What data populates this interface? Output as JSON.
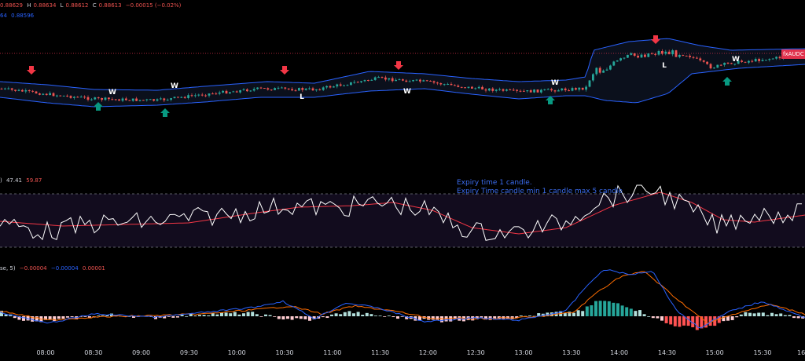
{
  "legend": {
    "main": {
      "open": "0.88629",
      "high_label": "H",
      "high": "0.88634",
      "low_label": "L",
      "low": "0.88612",
      "close_label": "C",
      "close": "0.88613",
      "change": "−0.00015 (−0.02%)"
    },
    "bollinger": {
      "value1": "64",
      "value2": "0.88596"
    },
    "rsi": {
      "suffix": ")",
      "value1": "47.41",
      "value2": "59.87"
    },
    "macd": {
      "params": "se, 5)",
      "value1": "−0.00004",
      "value2": "−0.00004",
      "value3": "0.00001"
    }
  },
  "annotations": {
    "line1": "Expiry time 1 candle.",
    "line2": "Expiry Time candle min 1 candle max 5 candle"
  },
  "price_tag": "fxAUDC",
  "signals": [
    {
      "type": "down",
      "x": 40
    },
    {
      "type": "up",
      "x": 125
    },
    {
      "type": "up",
      "x": 210
    },
    {
      "type": "down",
      "x": 362
    },
    {
      "type": "down",
      "x": 507
    },
    {
      "type": "up",
      "x": 700
    },
    {
      "type": "down",
      "x": 834
    },
    {
      "type": "up",
      "x": 925
    }
  ],
  "marks": [
    {
      "text": "W",
      "x": 143,
      "y": 120
    },
    {
      "text": "W",
      "x": 222,
      "y": 112
    },
    {
      "text": "L",
      "x": 384,
      "y": 126
    },
    {
      "text": "W",
      "x": 518,
      "y": 119
    },
    {
      "text": "W",
      "x": 706,
      "y": 108
    },
    {
      "text": "L",
      "x": 845,
      "y": 86
    },
    {
      "text": "W",
      "x": 936,
      "y": 78
    }
  ],
  "chart_data": {
    "type": "candlestick",
    "x_ticks": [
      "08:00",
      "08:30",
      "09:00",
      "09:30",
      "10:00",
      "10:30",
      "11:00",
      "11:30",
      "12:00",
      "12:30",
      "13:00",
      "13:30",
      "14:00",
      "14:30",
      "15:00",
      "15:30",
      "16"
    ],
    "colors": {
      "up": "#26a69a",
      "down": "#ef5350",
      "bands": "#2962ff",
      "rsi": "#ffffff",
      "rsi_ma": "#f23645",
      "macd": "#2962ff",
      "signal": "#ff6d00"
    }
  }
}
